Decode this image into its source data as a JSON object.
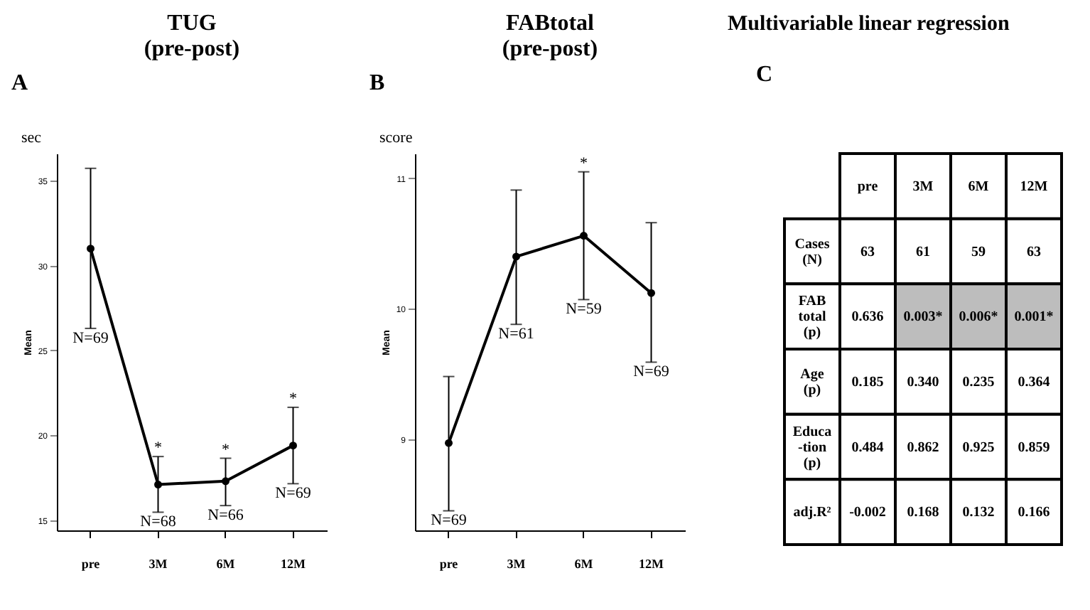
{
  "chart_data": [
    {
      "type": "line",
      "title": "TUG (pre-post)",
      "ylabel": "Mean",
      "categories": [
        "pre",
        "3M",
        "6M",
        "12M"
      ],
      "series": [
        {
          "color": "#000000",
          "values": [
            31.0,
            17.1,
            17.3,
            19.4
          ],
          "errors": [
            [
              26.3,
              35.73
            ],
            [
              15.47,
              18.75
            ],
            [
              15.86,
              18.65
            ],
            [
              17.15,
              21.65
            ]
          ]
        }
      ],
      "ylim": [
        14.4,
        36.6
      ],
      "yticks": [
        15,
        20,
        25,
        30,
        35
      ],
      "grid": false,
      "marker": "circle",
      "line_style": "solid",
      "annotations": [
        "A",
        "sec",
        {
          "text": "N=69",
          "x": "pre",
          "y": 26.3
        },
        {
          "text": "N=68",
          "x": "3M",
          "y": 15.47
        },
        {
          "text": "N=66",
          "x": "6M",
          "y": 15.86
        },
        {
          "text": "N=69",
          "x": "12M",
          "y": 17.15
        },
        {
          "text": "*",
          "x": "3M",
          "y": 18.75
        },
        {
          "text": "*",
          "x": "6M",
          "y": 18.65
        },
        {
          "text": "*",
          "x": "12M",
          "y": 21.65
        }
      ]
    },
    {
      "type": "line",
      "title": "FABtotal (pre-post)",
      "ylabel": "Mean",
      "categories": [
        "pre",
        "3M",
        "6M",
        "12M"
      ],
      "series": [
        {
          "color": "#000000",
          "values": [
            8.97,
            10.4,
            10.56,
            10.12
          ],
          "errors": [
            [
              8.45,
              9.48
            ],
            [
              9.88,
              10.91
            ],
            [
              10.07,
              11.05
            ],
            [
              9.59,
              10.66
            ]
          ]
        }
      ],
      "ylim": [
        8.3,
        11.19
      ],
      "yticks": [
        9,
        10,
        11
      ],
      "grid": false,
      "marker": "circle",
      "line_style": "solid",
      "annotations": [
        "B",
        "score",
        {
          "text": "N=69",
          "x": "pre",
          "y": 8.45
        },
        {
          "text": "N=61",
          "x": "3M",
          "y": 9.88
        },
        {
          "text": "N=59",
          "x": "6M",
          "y": 10.07
        },
        {
          "text": "N=69",
          "x": "12M",
          "y": 9.59
        },
        {
          "text": "*",
          "x": "6M",
          "y": 11.05
        }
      ]
    },
    {
      "type": "other",
      "title": "Multivariable linear regression",
      "categories": [
        "pre",
        "3M",
        "6M",
        "12M"
      ],
      "y_categories": [
        "Cases (N)",
        "FAB total (p)",
        "Age (p)",
        "Educa -tion (p)",
        "adj.R²"
      ],
      "cell_labels": [
        [
          "63",
          "61",
          "59",
          "63"
        ],
        [
          "0.636",
          "0.003*",
          "0.006*",
          "0.001*"
        ],
        [
          "0.185",
          "0.340",
          "0.235",
          "0.364"
        ],
        [
          "0.484",
          "0.862",
          "0.925",
          "0.859"
        ],
        [
          "-0.002",
          "0.168",
          "0.132",
          "0.166"
        ]
      ],
      "colors": [
        "#ffffff",
        "#ffffff",
        "#ffffff",
        "#ffffff",
        "#ffffff",
        "#bdbdbd",
        "#bdbdbd",
        "#bdbdbd",
        "#ffffff",
        "#ffffff",
        "#ffffff",
        "#ffffff",
        "#ffffff",
        "#ffffff",
        "#ffffff",
        "#ffffff",
        "#ffffff",
        "#ffffff",
        "#ffffff",
        "#ffffff"
      ],
      "annotations": [
        "C"
      ]
    }
  ]
}
